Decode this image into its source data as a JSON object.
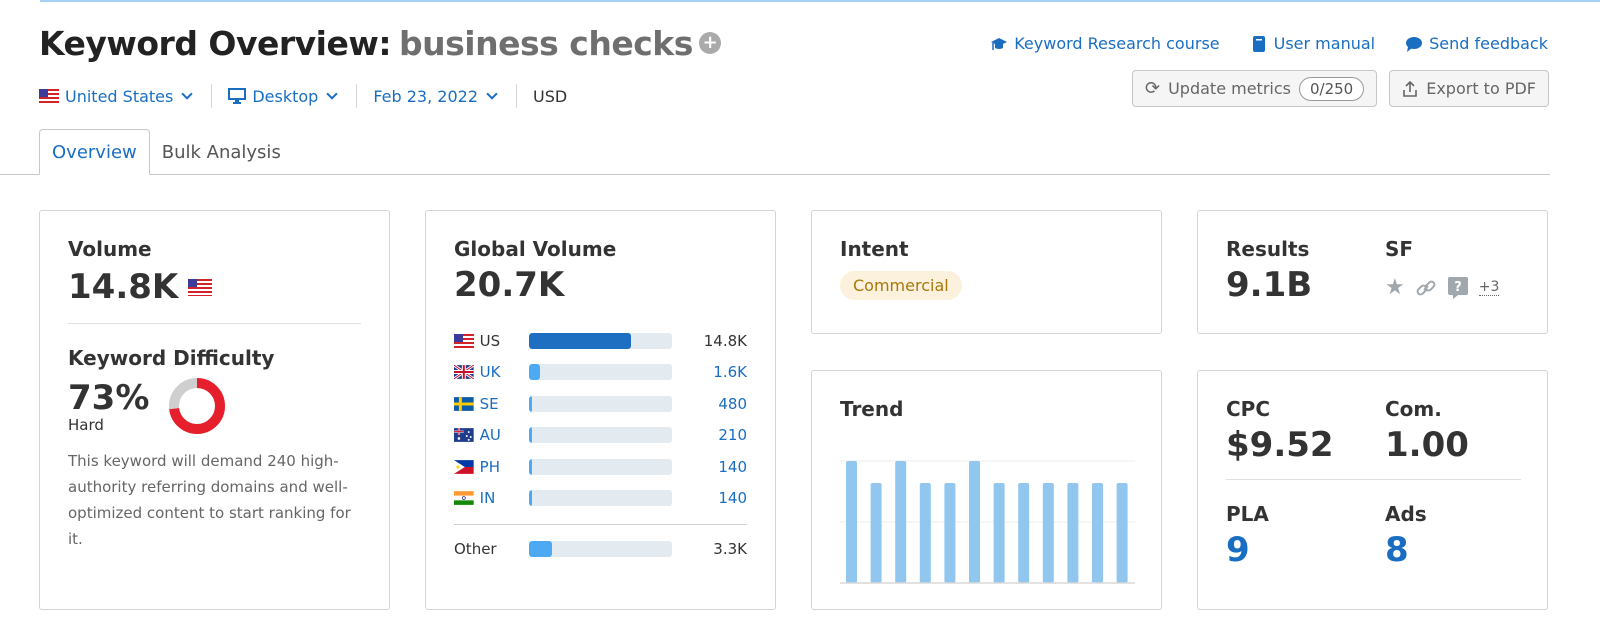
{
  "header": {
    "title_prefix": "Keyword Overview:",
    "keyword": "business checks",
    "add_icon": "plus-circle-icon"
  },
  "filters": {
    "country": "United States",
    "device": "Desktop",
    "date": "Feb 23, 2022",
    "currency": "USD"
  },
  "links": [
    {
      "label": "Keyword Research course",
      "icon": "graduation-cap-icon"
    },
    {
      "label": "User manual",
      "icon": "book-icon"
    },
    {
      "label": "Send feedback",
      "icon": "chat-bubble-icon"
    }
  ],
  "buttons": {
    "update_label": "Update metrics",
    "update_count": "0/250",
    "export_label": "Export to PDF"
  },
  "tabs": [
    {
      "label": "Overview",
      "active": true
    },
    {
      "label": "Bulk Analysis",
      "active": false
    }
  ],
  "volume": {
    "label": "Volume",
    "value": "14.8K"
  },
  "difficulty": {
    "label": "Keyword Difficulty",
    "value": "73%",
    "percent": 73,
    "level": "Hard",
    "description": "This keyword will demand 240 high-authority referring domains and well-optimized content to start ranking for it.",
    "color": "#e5202c"
  },
  "global_volume": {
    "label": "Global Volume",
    "value": "20.7K",
    "countries": [
      {
        "code": "US",
        "value": "14.8K",
        "pct": 71,
        "color": "#1e6fc1"
      },
      {
        "code": "UK",
        "value": "1.6K",
        "pct": 8,
        "color": "#4daaf2"
      },
      {
        "code": "SE",
        "value": "480",
        "pct": 2.5,
        "color": "#4daaf2"
      },
      {
        "code": "AU",
        "value": "210",
        "pct": 2,
        "color": "#4daaf2"
      },
      {
        "code": "PH",
        "value": "140",
        "pct": 2,
        "color": "#4daaf2"
      },
      {
        "code": "IN",
        "value": "140",
        "pct": 2,
        "color": "#4daaf2"
      }
    ],
    "other": {
      "label": "Other",
      "value": "3.3K",
      "pct": 16
    }
  },
  "intent": {
    "label": "Intent",
    "value": "Commercial"
  },
  "trend": {
    "label": "Trend",
    "bars": [
      100,
      82,
      100,
      82,
      82,
      100,
      82,
      82,
      82,
      82,
      82,
      82
    ]
  },
  "results": {
    "label": "Results",
    "value": "9.1B",
    "sf_label": "SF",
    "sf_more": "+3"
  },
  "ads": {
    "cpc_label": "CPC",
    "cpc_value": "$9.52",
    "com_label": "Com.",
    "com_value": "1.00",
    "pla_label": "PLA",
    "pla_value": "9",
    "ads_label": "Ads",
    "ads_value": "8"
  }
}
